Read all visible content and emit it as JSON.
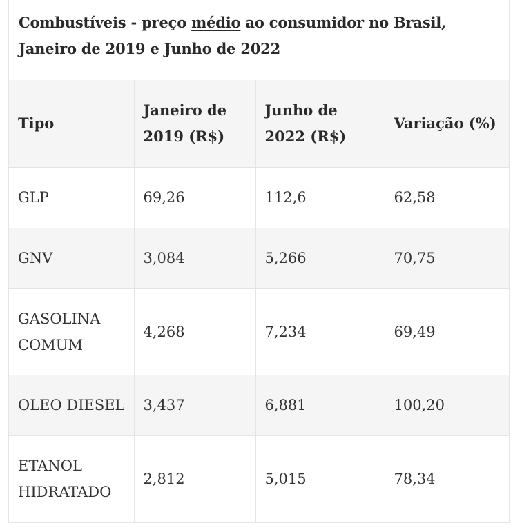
{
  "caption": {
    "part1": "Combustíveis - preço ",
    "underlined": "médio",
    "part2": " ao consumidor no Brasil, Janeiro de 2019 e Junho de 2022"
  },
  "table": {
    "headers": [
      "Tipo",
      "Janeiro de 2019 (R$)",
      "Junho de 2022  (R$)",
      "Variação (%)"
    ],
    "rows": [
      [
        "GLP",
        "69,26",
        "112,6",
        "62,58"
      ],
      [
        "GNV",
        "3,084",
        "5,266",
        "70,75"
      ],
      [
        "GASOLINA COMUM",
        "4,268",
        "7,234",
        "69,49"
      ],
      [
        "OLEO DIESEL",
        "3,437",
        "6,881",
        "100,20"
      ],
      [
        "ETANOL HIDRATADO",
        "2,812",
        "5,015",
        "78,34"
      ]
    ]
  }
}
